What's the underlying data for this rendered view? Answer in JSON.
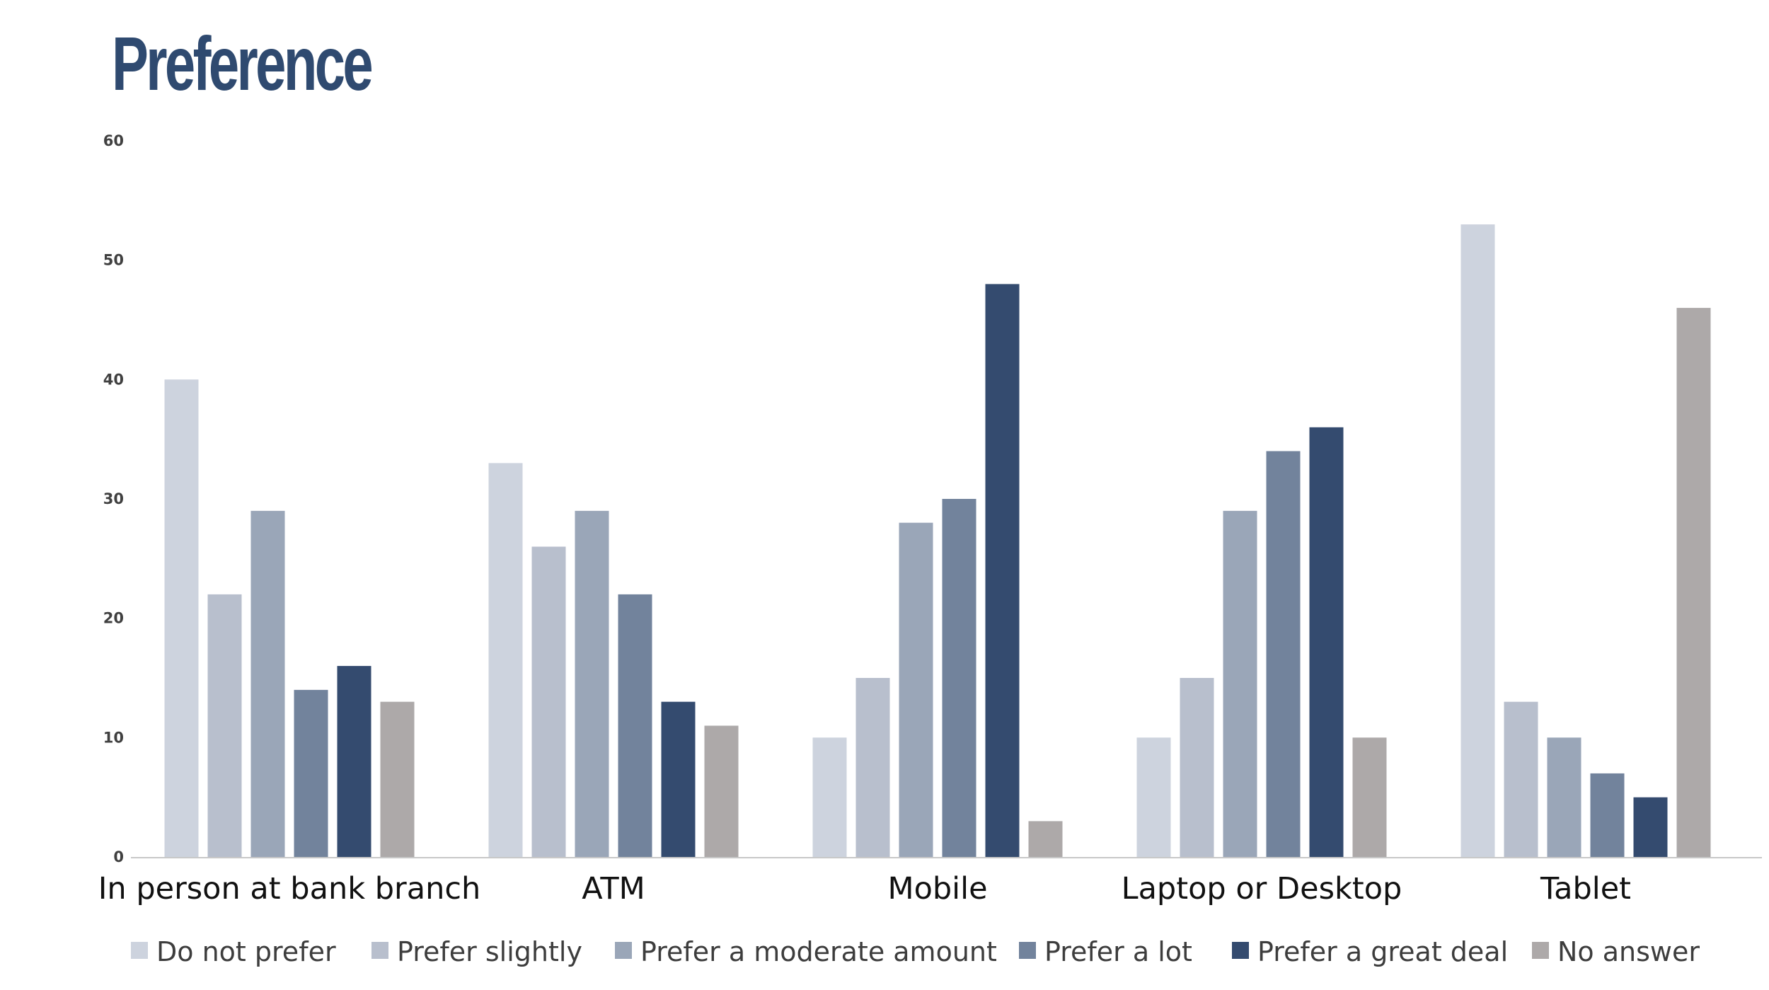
{
  "page": {
    "title": "Preference"
  },
  "chart_data": {
    "type": "bar",
    "title": "Preference",
    "xlabel": "",
    "ylabel": "",
    "ylim": [
      0,
      60
    ],
    "yticks": [
      "0",
      "10",
      "20",
      "30",
      "40",
      "50",
      "60"
    ],
    "grid": false,
    "legend_position": "bottom",
    "categories": [
      "In person at bank branch",
      "ATM",
      "Mobile",
      "Laptop or Desktop",
      "Tablet"
    ],
    "series": [
      {
        "name": "Do not prefer",
        "color": "#cdd3de",
        "values": [
          40,
          33,
          10,
          10,
          53
        ]
      },
      {
        "name": "Prefer slightly",
        "color": "#b8bfcd",
        "values": [
          22,
          26,
          15,
          15,
          13
        ]
      },
      {
        "name": "Prefer a moderate amount",
        "color": "#9aa6b8",
        "values": [
          29,
          29,
          28,
          29,
          10
        ]
      },
      {
        "name": "Prefer a lot",
        "color": "#72839c",
        "values": [
          14,
          22,
          30,
          34,
          7
        ]
      },
      {
        "name": "Prefer a great deal",
        "color": "#344b6f",
        "values": [
          16,
          13,
          48,
          36,
          5
        ]
      },
      {
        "name": "No answer",
        "color": "#ada9a9",
        "values": [
          13,
          11,
          3,
          10,
          46
        ]
      }
    ]
  }
}
